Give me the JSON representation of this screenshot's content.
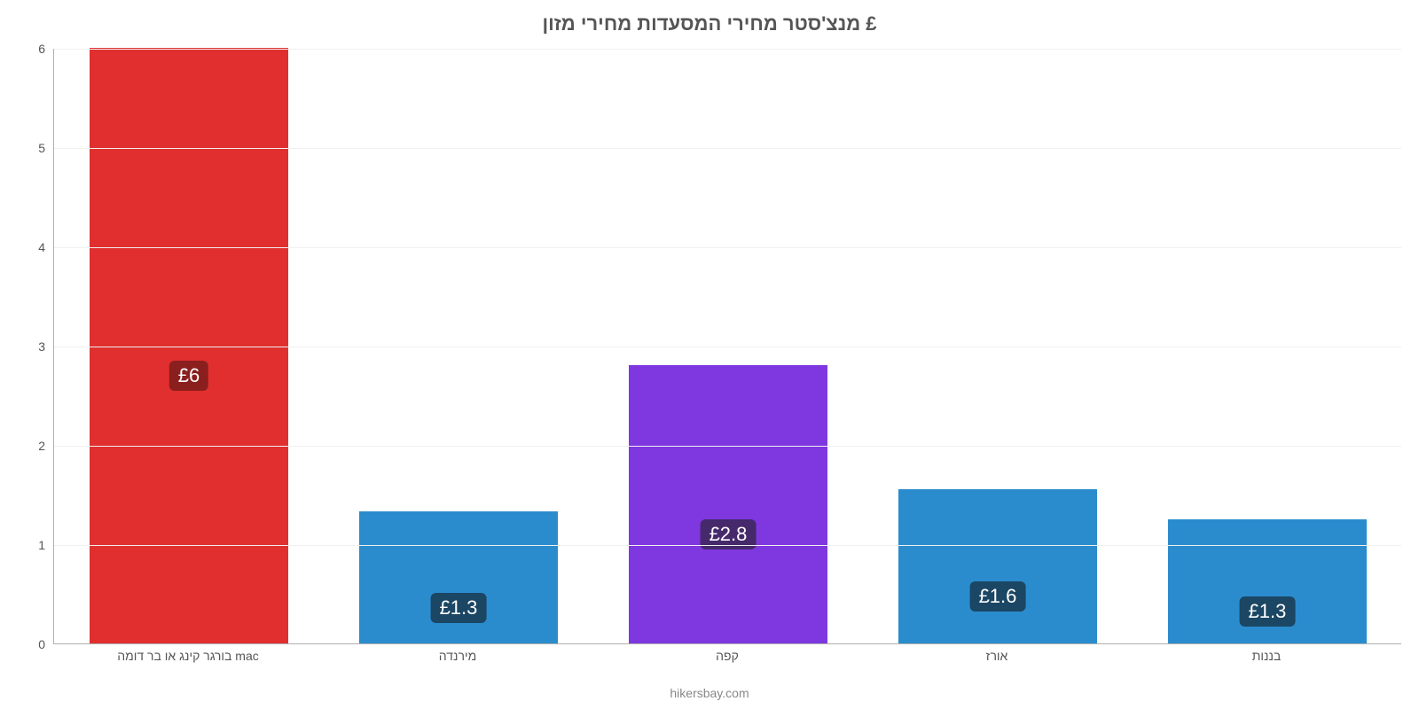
{
  "chart": {
    "type": "bar",
    "title": "מנצ'סטר מחירי המסעדות מחירי מזון £",
    "title_fontsize": 22,
    "title_color": "#555555",
    "footer": "hikersbay.com",
    "footer_fontsize": 14,
    "footer_color": "#888888",
    "background_color": "#ffffff",
    "axis_color": "#b0b0b0",
    "grid_color": "#f0f0f0",
    "ylim": [
      0,
      6
    ],
    "ytick_step": 1,
    "yticks": [
      {
        "v": 0,
        "label": "0"
      },
      {
        "v": 1,
        "label": "1"
      },
      {
        "v": 2,
        "label": "2"
      },
      {
        "v": 3,
        "label": "3"
      },
      {
        "v": 4,
        "label": "4"
      },
      {
        "v": 5,
        "label": "5"
      },
      {
        "v": 6,
        "label": "6"
      }
    ],
    "ytick_fontsize": 14,
    "ytick_color": "#555555",
    "xlabel_fontsize": 14,
    "xlabel_color": "#555555",
    "bar_width_ratio": 0.74,
    "value_label_fontsize": 22,
    "bars": [
      {
        "label": "בורגר קינג או בר דומה mac",
        "value": 6.0,
        "value_label": "£6",
        "fill": "#e12f2f",
        "badge_bg": "#8a1f1e"
      },
      {
        "label": "מירנדה",
        "value": 1.33,
        "value_label": "£1.3",
        "fill": "#2a8ccd",
        "badge_bg": "#1b4664"
      },
      {
        "label": "קפה",
        "value": 2.8,
        "value_label": "£2.8",
        "fill": "#7f37e0",
        "badge_bg": "#45296a"
      },
      {
        "label": "אורז",
        "value": 1.55,
        "value_label": "£1.6",
        "fill": "#2a8ccd",
        "badge_bg": "#1b4664"
      },
      {
        "label": "בננות",
        "value": 1.25,
        "value_label": "£1.3",
        "fill": "#2a8ccd",
        "badge_bg": "#1b4664"
      }
    ]
  }
}
